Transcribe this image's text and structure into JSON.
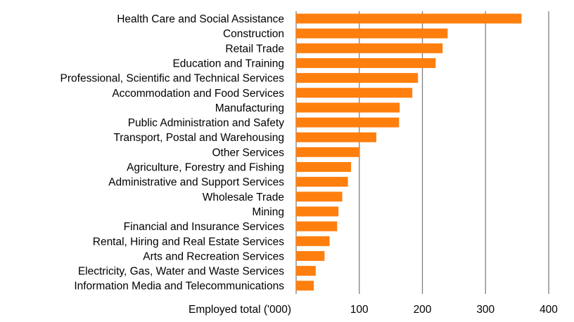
{
  "chart_data": {
    "type": "bar",
    "orientation": "horizontal",
    "categories": [
      "Health Care and Social Assistance",
      "Construction",
      "Retail Trade",
      "Education and Training",
      "Professional, Scientific and Technical Services",
      "Accommodation and Food Services",
      "Manufacturing",
      "Public Administration and Safety",
      "Transport, Postal and Warehousing",
      "Other Services",
      "Agriculture, Forestry and Fishing",
      "Administrative and Support Services",
      "Wholesale Trade",
      "Mining",
      "Financial and Insurance Services",
      "Rental, Hiring and Real Estate Services",
      "Arts and Recreation Services",
      "Electricity, Gas, Water and Waste Services",
      "Information Media and Telecommunications"
    ],
    "values": [
      357,
      240,
      232,
      221,
      193,
      184,
      164,
      163,
      127,
      101,
      87,
      82,
      73,
      67,
      65,
      53,
      45,
      31,
      28
    ],
    "xlabel": "Employed total ('000)",
    "xlim": [
      0,
      400
    ],
    "xticks": [
      100,
      200,
      300,
      400
    ],
    "grid": true,
    "legend": "none",
    "bar_color": "#ff7f0e",
    "grid_color": "#808080"
  }
}
